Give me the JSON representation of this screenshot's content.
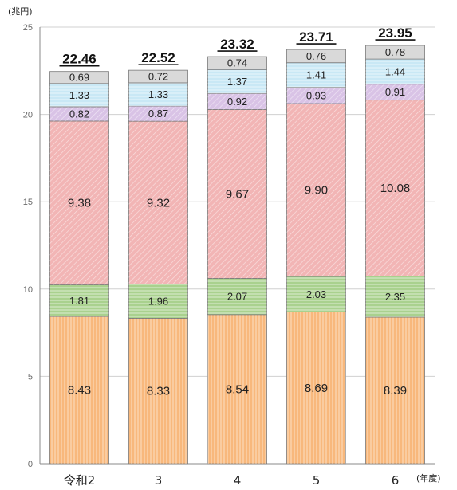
{
  "chart_data": {
    "type": "bar",
    "stacked": true,
    "y_unit": "(兆円)",
    "x_unit": "(年度)",
    "categories": [
      "令和2",
      "3",
      "4",
      "5",
      "6"
    ],
    "ylim": [
      0,
      25
    ],
    "yticks": [
      "0",
      "5",
      "10",
      "15",
      "20",
      "25"
    ],
    "grid": true,
    "series": [
      {
        "values": [
          8.43,
          8.33,
          8.54,
          8.69,
          8.39
        ],
        "labels": [
          "8.43",
          "8.33",
          "8.54",
          "8.69",
          "8.39"
        ],
        "color": "#f8b87c",
        "pattern": "vertical-lines"
      },
      {
        "values": [
          1.81,
          1.96,
          2.07,
          2.03,
          2.35
        ],
        "labels": [
          "1.81",
          "1.96",
          "2.07",
          "2.03",
          "2.35"
        ],
        "color": "#a9d18e",
        "pattern": "horizontal-lines"
      },
      {
        "values": [
          9.38,
          9.32,
          9.67,
          9.9,
          10.08
        ],
        "labels": [
          "9.38",
          "9.32",
          "9.67",
          "9.90",
          "10.08"
        ],
        "color": "#f2b5b5",
        "pattern": "diagonal-lines"
      },
      {
        "values": [
          0.82,
          0.87,
          0.92,
          0.93,
          0.91
        ],
        "labels": [
          "0.82",
          "0.87",
          "0.92",
          "0.93",
          "0.91"
        ],
        "color": "#d9c3e6",
        "pattern": "diagonal-lines"
      },
      {
        "values": [
          1.33,
          1.33,
          1.37,
          1.41,
          1.44
        ],
        "labels": [
          "1.33",
          "1.33",
          "1.37",
          "1.41",
          "1.44"
        ],
        "color": "#c9e8f5",
        "pattern": "horizontal-lines"
      },
      {
        "values": [
          0.69,
          0.72,
          0.74,
          0.76,
          0.78
        ],
        "labels": [
          "0.69",
          "0.72",
          "0.74",
          "0.76",
          "0.78"
        ],
        "color": "#d9d9d9",
        "pattern": "none"
      }
    ],
    "totals": [
      "22.46",
      "22.52",
      "23.32",
      "23.71",
      "23.95"
    ]
  }
}
